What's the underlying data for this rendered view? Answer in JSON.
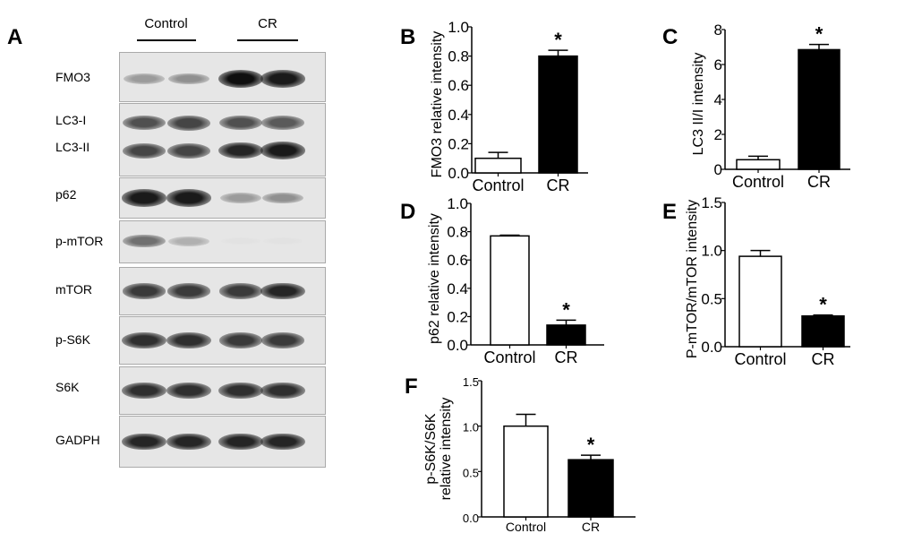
{
  "panels": {
    "A": "A",
    "B": "B",
    "C": "C",
    "D": "D",
    "E": "E",
    "F": "F"
  },
  "blot": {
    "groups": [
      "Control",
      "CR"
    ],
    "rows": [
      {
        "label": "FMO3",
        "intensity": [
          0.35,
          0.4,
          1.0,
          0.95
        ]
      },
      {
        "label": "LC3-I",
        "intensity": [
          0.7,
          0.75,
          0.7,
          0.65
        ]
      },
      {
        "label": "LC3-II",
        "intensity": [
          0.75,
          0.75,
          0.9,
          0.95
        ]
      },
      {
        "label": "p62",
        "intensity": [
          0.95,
          0.95,
          0.35,
          0.4
        ]
      },
      {
        "label": "p-mTOR",
        "intensity": [
          0.55,
          0.25,
          0.02,
          0.02
        ]
      },
      {
        "label": "mTOR",
        "intensity": [
          0.8,
          0.8,
          0.8,
          0.9
        ]
      },
      {
        "label": "p-S6K",
        "intensity": [
          0.85,
          0.85,
          0.8,
          0.8
        ]
      },
      {
        "label": "S6K",
        "intensity": [
          0.85,
          0.85,
          0.85,
          0.85
        ]
      },
      {
        "label": "GADPH",
        "intensity": [
          0.9,
          0.9,
          0.9,
          0.9
        ]
      }
    ]
  },
  "chart_data": [
    {
      "id": "B",
      "type": "bar",
      "categories": [
        "Control",
        "CR"
      ],
      "values": [
        0.1,
        0.8
      ],
      "errors": [
        0.04,
        0.04
      ],
      "significance": [
        "",
        "*"
      ],
      "ylabel": "FMO3 relative intensity",
      "ylim": [
        0,
        1.0
      ],
      "yticks": [
        "0.0",
        "0.2",
        "0.4",
        "0.6",
        "0.8",
        "1.0"
      ],
      "fill": [
        "#ffffff",
        "#000000"
      ]
    },
    {
      "id": "C",
      "type": "bar",
      "categories": [
        "Control",
        "CR"
      ],
      "values": [
        0.55,
        6.85
      ],
      "errors": [
        0.2,
        0.3
      ],
      "significance": [
        "",
        "*"
      ],
      "ylabel": "LC3 II/I intensity",
      "ylim": [
        0,
        8
      ],
      "yticks": [
        "0",
        "2",
        "4",
        "6",
        "8"
      ],
      "fill": [
        "#ffffff",
        "#000000"
      ]
    },
    {
      "id": "D",
      "type": "bar",
      "categories": [
        "Control",
        "CR"
      ],
      "values": [
        0.77,
        0.14
      ],
      "errors": [
        0.005,
        0.035
      ],
      "significance": [
        "",
        "*"
      ],
      "ylabel": "p62 relative intensity",
      "ylim": [
        0,
        1.0
      ],
      "yticks": [
        "0.0",
        "0.2",
        "0.4",
        "0.6",
        "0.8",
        "1.0"
      ],
      "fill": [
        "#ffffff",
        "#000000"
      ]
    },
    {
      "id": "E",
      "type": "bar",
      "categories": [
        "Control",
        "CR"
      ],
      "values": [
        0.94,
        0.32
      ],
      "errors": [
        0.06,
        0.01
      ],
      "significance": [
        "",
        "*"
      ],
      "ylabel": "P-mTOR/mTOR  intensity",
      "ylim": [
        0,
        1.5
      ],
      "yticks": [
        "0.0",
        "0.5",
        "1.0",
        "1.5"
      ],
      "fill": [
        "#ffffff",
        "#000000"
      ]
    },
    {
      "id": "F",
      "type": "bar",
      "categories": [
        "Control",
        "CR"
      ],
      "values": [
        1.0,
        0.63
      ],
      "errors": [
        0.13,
        0.05
      ],
      "significance": [
        "",
        "*"
      ],
      "ylabel": [
        "p-S6K/S6K",
        "relative intensity"
      ],
      "ylim": [
        0,
        1.5
      ],
      "yticks": [
        "0.0",
        "0.5",
        "1.0",
        "1.5"
      ],
      "fill": [
        "#ffffff",
        "#000000"
      ]
    }
  ]
}
